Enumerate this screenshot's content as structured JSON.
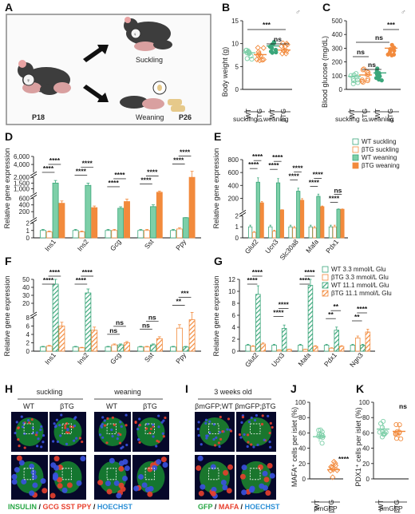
{
  "panels": {
    "A": {
      "label": "A",
      "suckling": "Suckling",
      "weaning": "Weaning",
      "p18": "P18",
      "p26": "P26"
    },
    "B": {
      "label": "B",
      "ylabel": "Body weight (g)",
      "xcats": [
        "WT",
        "βTG",
        "WT",
        "βTG"
      ],
      "groups": [
        "suckling",
        "weaning"
      ],
      "sig": [
        "***",
        "ns"
      ],
      "symbol": "♂"
    },
    "C": {
      "label": "C",
      "ylabel": "Blood glucose (mg/dL)",
      "xcats": [
        "WT",
        "βTG",
        "WT",
        "βTG"
      ],
      "groups": [
        "suckling",
        "weaning"
      ],
      "sig": [
        "ns",
        "ns",
        "ns",
        "***"
      ],
      "symbol": "♂"
    },
    "D": {
      "label": "D",
      "ylabel": "Relative gene expression",
      "genes": [
        "Ins1",
        "Ins2",
        "Gcg",
        "Sst",
        "Ppy"
      ]
    },
    "E": {
      "label": "E",
      "ylabel": "Relative gene expression",
      "genes": [
        "Glut2",
        "Ucn3",
        "Slc30a8",
        "Mafa",
        "Pdx1"
      ],
      "legend": [
        "WT suckling",
        "βTG suckling",
        "WT weaning",
        "βTG weaning"
      ]
    },
    "F": {
      "label": "F",
      "ylabel": "Relative gene expression",
      "genes": [
        "Ins1",
        "Ins2",
        "Gcg",
        "Sst",
        "Ppy"
      ]
    },
    "G": {
      "label": "G",
      "ylabel": "Relative gene expression",
      "genes": [
        "Glut2",
        "Ucn3",
        "Mafa",
        "Pdx1",
        "Ngn3"
      ],
      "legend": [
        "WT 3.3 mmol/L Glu",
        "βTG 3.3 mmol/L Glu",
        "WT 11.1 mmol/L Glu",
        "βTG 11.1 mmol/L Glu"
      ]
    },
    "H": {
      "label": "H",
      "groups": [
        "suckling",
        "weaning"
      ],
      "cols": [
        "WT",
        "βTG",
        "WT",
        "βTG"
      ],
      "caption": {
        "a": "INSULIN",
        "b": " / ",
        "c": "GCG SST PPY",
        "d": " / ",
        "e": "HOECHST"
      }
    },
    "I": {
      "label": "I",
      "title": "3 weeks old",
      "cols": [
        "βmGFP;WT",
        "βmGFP;βTG"
      ],
      "caption": {
        "a": "GFP",
        "b": " / ",
        "c": "MAFA",
        "d": " / ",
        "e": "HOECHST"
      }
    },
    "J": {
      "label": "J",
      "ylabel": "MAFA⁺ cells per islet (%)",
      "xcats": [
        "WT",
        "βTG"
      ],
      "group": "βmGFP",
      "sig": "****"
    },
    "K": {
      "label": "K",
      "ylabel": "PDX1⁺ cells per islet (%)",
      "xcats": [
        "WT",
        "βTG"
      ],
      "group": "βmGFP",
      "sig": "ns"
    }
  },
  "chart_data": [
    {
      "panel": "B",
      "type": "scatter",
      "ylabel": "Body weight (g)",
      "ylim": [
        0,
        15
      ],
      "yticks": [
        0,
        5,
        10,
        15
      ],
      "categories": [
        "WT suckling",
        "βTG suckling",
        "WT weaning",
        "βTG weaning"
      ],
      "means": [
        8.0,
        7.6,
        9.5,
        8.6
      ]
    },
    {
      "panel": "C",
      "type": "scatter",
      "ylabel": "Blood glucose (mg/dL)",
      "ylim": [
        0,
        500
      ],
      "yticks": [
        0,
        100,
        200,
        300,
        400,
        500
      ],
      "categories": [
        "WT suckling",
        "βTG suckling",
        "WT weaning",
        "βTG weaning"
      ],
      "means": [
        95,
        105,
        120,
        300
      ]
    },
    {
      "panel": "D",
      "type": "bar",
      "ylabel": "Relative gene expression",
      "categories": [
        "Ins1",
        "Ins2",
        "Gcg",
        "Sst",
        "Ppy"
      ],
      "yticks": [
        "0",
        "1",
        "2",
        "200",
        "400",
        "600",
        "1,000",
        "1,500",
        "2,000",
        "4,000",
        "6,000"
      ],
      "series": [
        {
          "name": "WT suckling",
          "values": [
            1,
            1,
            1,
            1,
            1
          ]
        },
        {
          "name": "βTG suckling",
          "values": [
            0.8,
            0.8,
            1.0,
            1.0,
            1.2
          ]
        },
        {
          "name": "WT weaning",
          "values": [
            1500,
            1300,
            300,
            350,
            20
          ]
        },
        {
          "name": "βTG weaning",
          "values": [
            450,
            320,
            500,
            700,
            2000
          ]
        }
      ]
    },
    {
      "panel": "E",
      "type": "bar",
      "ylabel": "Relative gene expression",
      "categories": [
        "Glut2",
        "Ucn3",
        "Slc30a8",
        "Mafa",
        "Pdx1"
      ],
      "yticks": [
        "0",
        "1",
        "2",
        "200",
        "400",
        "600",
        "800"
      ],
      "series": [
        {
          "name": "WT suckling",
          "values": [
            1,
            1,
            1,
            1,
            1
          ]
        },
        {
          "name": "βTG suckling",
          "values": [
            0.5,
            0.6,
            0.9,
            0.9,
            1.0
          ]
        },
        {
          "name": "WT weaning",
          "values": [
            450,
            440,
            310,
            230,
            30
          ]
        },
        {
          "name": "βTG weaning",
          "values": [
            130,
            20,
            170,
            70,
            30
          ]
        }
      ]
    },
    {
      "panel": "F",
      "type": "bar",
      "ylabel": "Relative gene expression",
      "categories": [
        "Ins1",
        "Ins2",
        "Gcg",
        "Sst",
        "Ppy"
      ],
      "yticks": [
        "0",
        "2",
        "4",
        "6",
        "8",
        "20",
        "30",
        "40",
        "50"
      ],
      "series": [
        {
          "name": "WT 3.3 mmol/L Glu",
          "values": [
            1,
            1,
            1,
            1,
            1
          ]
        },
        {
          "name": "βTG 3.3 mmol/L Glu",
          "values": [
            1.2,
            0.8,
            1.5,
            1.0,
            5.5
          ]
        },
        {
          "name": "WT 11.1 mmol/L Glu",
          "values": [
            44,
            33,
            1.5,
            1.5,
            1.0
          ]
        },
        {
          "name": "βTG 11.1 mmol/L Glu",
          "values": [
            6,
            5,
            2.0,
            3.0,
            7.5
          ]
        }
      ]
    },
    {
      "panel": "G",
      "type": "bar",
      "ylabel": "Relative gene expression",
      "categories": [
        "Glut2",
        "Ucn3",
        "Mafa",
        "Pdx1",
        "Ngn3"
      ],
      "yticks": [
        "0",
        "2",
        "4",
        "6",
        "8",
        "10",
        "12"
      ],
      "series": [
        {
          "name": "WT 3.3 mmol/L Glu",
          "values": [
            1,
            1,
            1,
            1,
            1
          ]
        },
        {
          "name": "βTG 3.3 mmol/L Glu",
          "values": [
            0.8,
            0.2,
            0.3,
            0.5,
            2.2
          ]
        },
        {
          "name": "WT 11.1 mmol/L Glu",
          "values": [
            9.5,
            3.8,
            11,
            3.5,
            1.0
          ]
        },
        {
          "name": "βTG 11.1 mmol/L Glu",
          "values": [
            1.2,
            0.3,
            0.8,
            0.8,
            3.2
          ]
        }
      ]
    },
    {
      "panel": "J",
      "type": "scatter",
      "ylabel": "MAFA⁺ cells per islet (%)",
      "ylim": [
        0,
        100
      ],
      "yticks": [
        0,
        20,
        40,
        60,
        80,
        100
      ],
      "categories": [
        "WT",
        "βTG"
      ],
      "means": [
        55,
        12
      ]
    },
    {
      "panel": "K",
      "type": "scatter",
      "ylabel": "PDX1⁺ cells per islet (%)",
      "ylim": [
        0,
        100
      ],
      "yticks": [
        0,
        20,
        40,
        60,
        80,
        100
      ],
      "categories": [
        "WT",
        "βTG"
      ],
      "means": [
        65,
        62
      ]
    }
  ],
  "colors": {
    "teal": "#7dcfa8",
    "tealDark": "#3aa67a",
    "orange": "#f28a3c",
    "orangeLight": "#f7b98a",
    "red": "#e8402e",
    "green": "#34c65a",
    "blue": "#2433c8"
  }
}
